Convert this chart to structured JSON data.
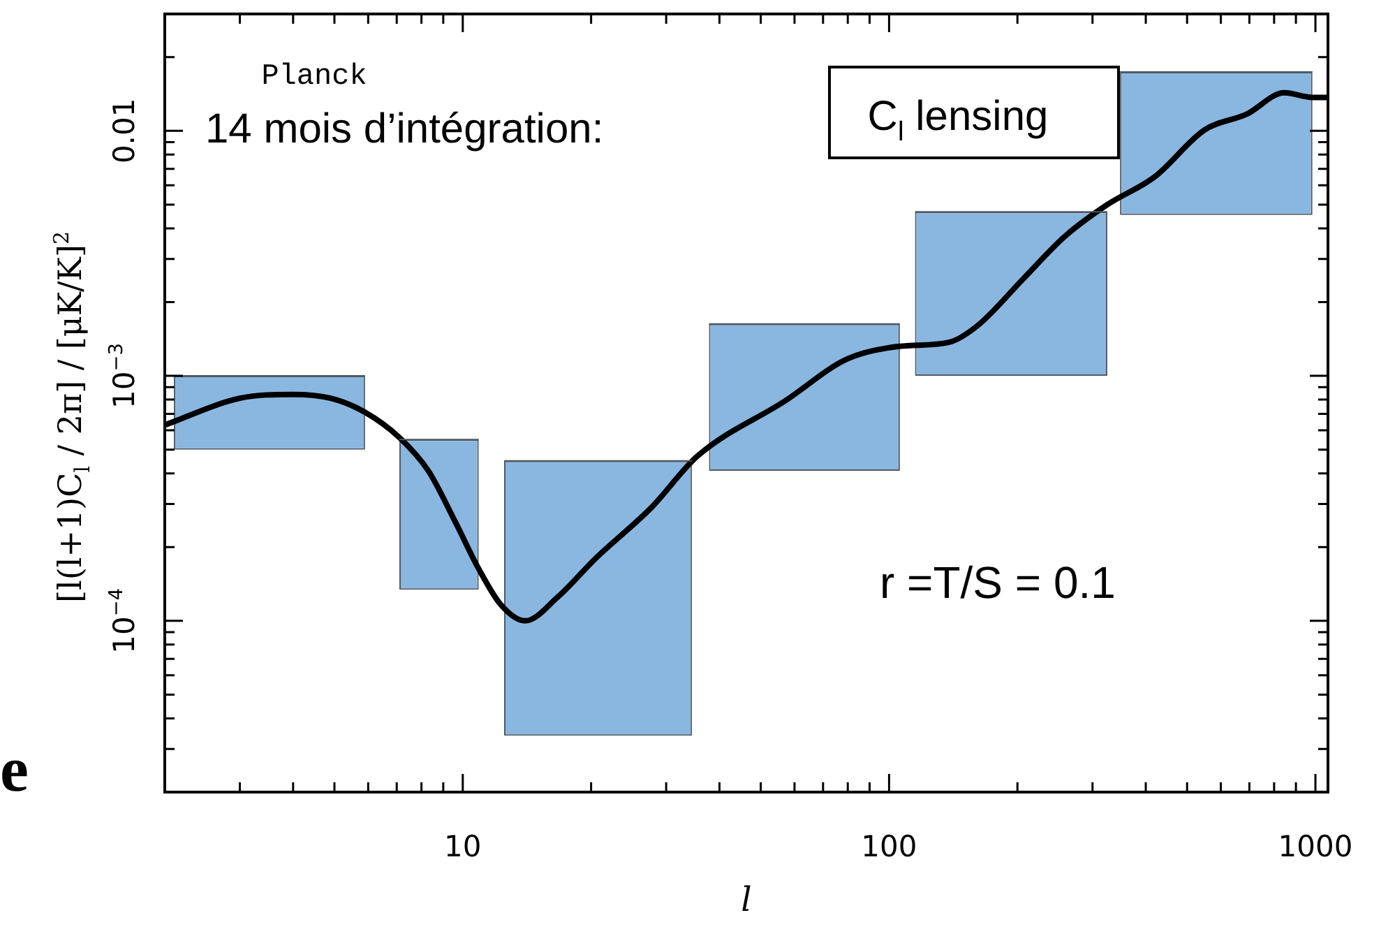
{
  "chart_data": {
    "type": "line",
    "xlabel": "l",
    "ylabel": "[l(l+1)C$_{l}$ / 2π] / [μK/K]$^{2}$",
    "log": "xy",
    "xlim": [
      2,
      1070
    ],
    "ylim": [
      2e-05,
      0.03
    ],
    "xticks": [
      {
        "value": 3,
        "label": null
      },
      {
        "value": 4,
        "label": null
      },
      {
        "value": 5,
        "label": null
      },
      {
        "value": 6,
        "label": null
      },
      {
        "value": 7,
        "label": null
      },
      {
        "value": 8,
        "label": null
      },
      {
        "value": 9,
        "label": null
      },
      10,
      {
        "value": 20,
        "label": null
      },
      {
        "value": 30,
        "label": null
      },
      {
        "value": 40,
        "label": null
      },
      {
        "value": 50,
        "label": null
      },
      {
        "value": 60,
        "label": null
      },
      {
        "value": 70,
        "label": null
      },
      {
        "value": 80,
        "label": null
      },
      {
        "value": 90,
        "label": null
      },
      100,
      {
        "value": 200,
        "label": null
      },
      {
        "value": 300,
        "label": null
      },
      {
        "value": 400,
        "label": null
      },
      {
        "value": 500,
        "label": null
      },
      {
        "value": 600,
        "label": null
      },
      {
        "value": 700,
        "label": null
      },
      {
        "value": 800,
        "label": null
      },
      {
        "value": 900,
        "label": null
      },
      1000
    ],
    "yticks": [
      {
        "value": 3e-05,
        "label": null
      },
      {
        "value": 4e-05,
        "label": null
      },
      {
        "value": 5e-05,
        "label": null
      },
      {
        "value": 6e-05,
        "label": null
      },
      {
        "value": 7e-05,
        "label": null
      },
      {
        "value": 8e-05,
        "label": null
      },
      {
        "value": 9e-05,
        "label": null
      },
      {
        "value": 0.0001,
        "label": "10$^{−4}$"
      },
      {
        "value": 0.0002,
        "label": null
      },
      {
        "value": 0.0003,
        "label": null
      },
      {
        "value": 0.0004,
        "label": null
      },
      {
        "value": 0.0005,
        "label": null
      },
      {
        "value": 0.0006,
        "label": null
      },
      {
        "value": 0.0007,
        "label": null
      },
      {
        "value": 0.0008,
        "label": null
      },
      {
        "value": 0.0009,
        "label": null
      },
      {
        "value": 0.001,
        "label": "10$^{−3}$"
      },
      {
        "value": 0.002,
        "label": null
      },
      {
        "value": 0.003,
        "label": null
      },
      {
        "value": 0.004,
        "label": null
      },
      {
        "value": 0.005,
        "label": null
      },
      {
        "value": 0.006,
        "label": null
      },
      {
        "value": 0.007,
        "label": null
      },
      {
        "value": 0.008,
        "label": null
      },
      {
        "value": 0.009,
        "label": null
      },
      0.01,
      {
        "value": 0.02,
        "label": null
      },
      {
        "value": 0.03,
        "label": null
      }
    ],
    "series": [
      {
        "type": "bar",
        "color": "#8ab7e0",
        "x": [
          3.52,
          8.8,
          20.77,
          63.3,
          193.3,
          585.2
        ],
        "base": [
          0.0005,
          0.000134,
          3.4e-05,
          0.00041,
          0.001,
          0.00454
        ],
        "values": [
          0.0005,
          0.000416,
          0.000416,
          0.00122,
          0.00367,
          0.01286
        ],
        "xerrors": [
          [
            2.1,
            5.9
          ],
          [
            7.1,
            10.9
          ],
          [
            12.5,
            34.5
          ],
          [
            37.8,
            106
          ],
          [
            115,
            325
          ],
          [
            348,
            984
          ]
        ]
      },
      {
        "color": "#000000",
        "x": [
          2,
          3,
          4,
          4.9,
          5.9,
          7.1,
          8.3,
          9.6,
          10.9,
          12.3,
          14,
          16.7,
          20.5,
          27.7,
          35.5,
          57,
          79.6,
          106,
          138,
          161,
          206,
          258,
          325,
          420,
          550,
          690,
          845,
          984,
          1070
        ],
        "values": [
          0.00063,
          0.00081,
          0.00084,
          0.00081,
          0.00071,
          0.00056,
          0.00041,
          0.000254,
          0.000163,
          0.000116,
          0.0001,
          0.000125,
          0.00018,
          0.00029,
          0.00047,
          0.00079,
          0.00117,
          0.00132,
          0.00137,
          0.0016,
          0.00248,
          0.0037,
          0.005,
          0.0065,
          0.0101,
          0.0117,
          0.0143,
          0.0137,
          0.0137
        ]
      }
    ],
    "annotations": [
      "Planck",
      "14 mois d’intégration:",
      "C$_{l}$ lensing",
      "r =T/S = 0.1",
      "e"
    ]
  }
}
